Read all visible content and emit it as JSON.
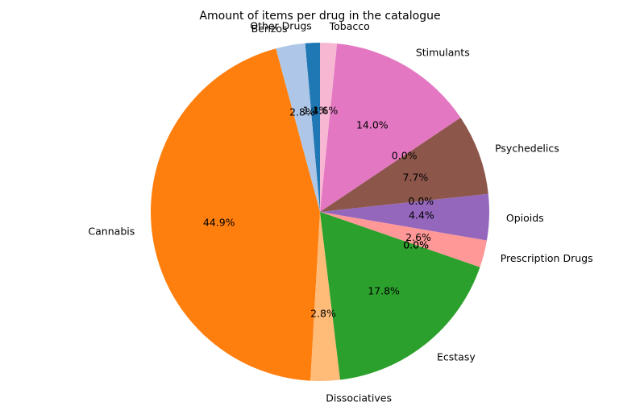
{
  "chart_data": {
    "type": "pie",
    "title": "Amount of items per drug in the catalogue",
    "start_angle": 90,
    "direction": "counterclockwise",
    "slices": [
      {
        "label": "Other Drugs",
        "value": 1.4,
        "pct_label": "1.4%",
        "color": "#1f77b4"
      },
      {
        "label": "Benzos",
        "value": 2.8,
        "pct_label": "2.8%",
        "color": "#aec7e8"
      },
      {
        "label": "Cannabis",
        "value": 44.9,
        "pct_label": "44.9%",
        "color": "#ff7f0e"
      },
      {
        "label": "Dissociatives",
        "value": 2.8,
        "pct_label": "2.8%",
        "color": "#ffbb78"
      },
      {
        "label": "Ecstasy",
        "value": 17.8,
        "pct_label": "17.8%",
        "color": "#2ca02c"
      },
      {
        "label": "",
        "value": 0.0,
        "pct_label": "0.0%",
        "color": "#98df8a"
      },
      {
        "label": "",
        "value": 0.0,
        "pct_label": "0.0%",
        "color": "#d62728"
      },
      {
        "label": "Prescription Drugs",
        "value": 2.6,
        "pct_label": "2.6%",
        "color": "#ff9896"
      },
      {
        "label": "Opioids",
        "value": 4.4,
        "pct_label": "4.4%",
        "color": "#9467bd"
      },
      {
        "label": "",
        "value": 0.0,
        "pct_label": "0.0%",
        "color": "#c5b0d5"
      },
      {
        "label": "Psychedelics",
        "value": 7.7,
        "pct_label": "7.7%",
        "color": "#8c564b"
      },
      {
        "label": "",
        "value": 0.0,
        "pct_label": "0.0%",
        "color": "#c49c94"
      },
      {
        "label": "Stimulants",
        "value": 14.0,
        "pct_label": "14.0%",
        "color": "#e377c2"
      },
      {
        "label": "Tobacco",
        "value": 1.6,
        "pct_label": "1.6%",
        "color": "#f7b6d2"
      }
    ]
  }
}
